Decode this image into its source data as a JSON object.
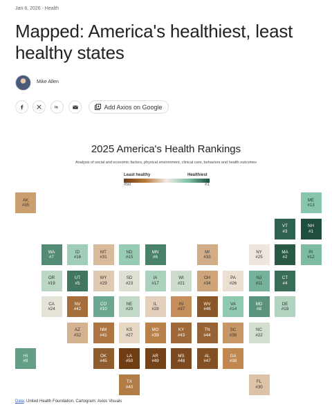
{
  "article": {
    "meta": "Jan 8, 2026 - Health",
    "headline": "Mapped: America's healthiest, least healthy states",
    "author": "Mike Allen",
    "share_google_label": "Add Axios on Google"
  },
  "share_icons": [
    "facebook-icon",
    "x-icon",
    "linkedin-icon",
    "email-icon"
  ],
  "chart_data": {
    "type": "heatmap",
    "title": "2025 America's Health Rankings",
    "subtitle": "Analysis of social and economic factors, physical environment, clinical care, behaviors and health outcomes",
    "legend": {
      "left_label": "Least healthy",
      "right_label": "Healthiest",
      "left_value": "#50",
      "right_value": "#1"
    },
    "colors": {
      "worst": "#6e3d14",
      "mid_low": "#c08850",
      "mid": "#eee6dc",
      "mid_high": "#86c6ac",
      "best": "#1f4f3c"
    },
    "states": [
      {
        "abbr": "AK",
        "rank": 35,
        "label": "#35",
        "row": 0,
        "col": 0
      },
      {
        "abbr": "ME",
        "rank": 13,
        "label": "#13",
        "row": 0,
        "col": 11
      },
      {
        "abbr": "VT",
        "rank": 3,
        "label": "#3",
        "row": 1,
        "col": 10
      },
      {
        "abbr": "NH",
        "rank": 1,
        "label": "#1",
        "row": 1,
        "col": 11
      },
      {
        "abbr": "WA",
        "rank": 7,
        "label": "#7",
        "row": 2,
        "col": 1
      },
      {
        "abbr": "ID",
        "rank": 16,
        "label": "#16",
        "row": 2,
        "col": 2
      },
      {
        "abbr": "MT",
        "rank": 31,
        "label": "#31",
        "row": 2,
        "col": 3
      },
      {
        "abbr": "ND",
        "rank": 15,
        "label": "#15",
        "row": 2,
        "col": 4
      },
      {
        "abbr": "MN",
        "rank": 6,
        "label": "#6",
        "row": 2,
        "col": 5
      },
      {
        "abbr": "MI",
        "rank": 33,
        "label": "#33",
        "row": 2,
        "col": 7
      },
      {
        "abbr": "NY",
        "rank": 25,
        "label": "#25",
        "row": 2,
        "col": 9
      },
      {
        "abbr": "MA",
        "rank": 2,
        "label": "#2",
        "row": 2,
        "col": 10
      },
      {
        "abbr": "RI",
        "rank": 12,
        "label": "#12",
        "row": 2,
        "col": 11
      },
      {
        "abbr": "OR",
        "rank": 19,
        "label": "#19",
        "row": 3,
        "col": 1
      },
      {
        "abbr": "UT",
        "rank": 5,
        "label": "#5",
        "row": 3,
        "col": 2
      },
      {
        "abbr": "WY",
        "rank": 29,
        "label": "#29",
        "row": 3,
        "col": 3
      },
      {
        "abbr": "SD",
        "rank": 23,
        "label": "#23",
        "row": 3,
        "col": 4
      },
      {
        "abbr": "IA",
        "rank": 17,
        "label": "#17",
        "row": 3,
        "col": 5
      },
      {
        "abbr": "WI",
        "rank": 21,
        "label": "#21",
        "row": 3,
        "col": 6
      },
      {
        "abbr": "OH",
        "rank": 34,
        "label": "#34",
        "row": 3,
        "col": 7
      },
      {
        "abbr": "PA",
        "rank": 26,
        "label": "#26",
        "row": 3,
        "col": 8
      },
      {
        "abbr": "NJ",
        "rank": 11,
        "label": "#11",
        "row": 3,
        "col": 9
      },
      {
        "abbr": "CT",
        "rank": 4,
        "label": "#4",
        "row": 3,
        "col": 10
      },
      {
        "abbr": "CA",
        "rank": 24,
        "label": "#24",
        "row": 4,
        "col": 1
      },
      {
        "abbr": "NV",
        "rank": 42,
        "label": "#42",
        "row": 4,
        "col": 2
      },
      {
        "abbr": "CO",
        "rank": 10,
        "label": "#10",
        "row": 4,
        "col": 3
      },
      {
        "abbr": "NE",
        "rank": 20,
        "label": "#20",
        "row": 4,
        "col": 4
      },
      {
        "abbr": "IL",
        "rank": 28,
        "label": "#28",
        "row": 4,
        "col": 5
      },
      {
        "abbr": "IN",
        "rank": 37,
        "label": "#37",
        "row": 4,
        "col": 6
      },
      {
        "abbr": "WV",
        "rank": 46,
        "label": "#46",
        "row": 4,
        "col": 7
      },
      {
        "abbr": "VA",
        "rank": 14,
        "label": "#14",
        "row": 4,
        "col": 8
      },
      {
        "abbr": "MD",
        "rank": 8,
        "label": "#8",
        "row": 4,
        "col": 9
      },
      {
        "abbr": "DE",
        "rank": 18,
        "label": "#18",
        "row": 4,
        "col": 10
      },
      {
        "abbr": "AZ",
        "rank": 32,
        "label": "#32",
        "row": 5,
        "col": 2
      },
      {
        "abbr": "NM",
        "rank": 41,
        "label": "#41",
        "row": 5,
        "col": 3
      },
      {
        "abbr": "KS",
        "rank": 27,
        "label": "#27",
        "row": 5,
        "col": 4
      },
      {
        "abbr": "MO",
        "rank": 39,
        "label": "#39",
        "row": 5,
        "col": 5
      },
      {
        "abbr": "KY",
        "rank": 43,
        "label": "#43",
        "row": 5,
        "col": 6
      },
      {
        "abbr": "TN",
        "rank": 44,
        "label": "#44",
        "row": 5,
        "col": 7
      },
      {
        "abbr": "SC",
        "rank": 36,
        "label": "#36",
        "row": 5,
        "col": 8
      },
      {
        "abbr": "NC",
        "rank": 22,
        "label": "#22",
        "row": 5,
        "col": 9
      },
      {
        "abbr": "HI",
        "rank": 9,
        "label": "#9",
        "row": 6,
        "col": 0
      },
      {
        "abbr": "OK",
        "rank": 45,
        "label": "#45",
        "row": 6,
        "col": 3
      },
      {
        "abbr": "LA",
        "rank": 50,
        "label": "#50",
        "row": 6,
        "col": 4
      },
      {
        "abbr": "AR",
        "rank": 49,
        "label": "#49",
        "row": 6,
        "col": 5
      },
      {
        "abbr": "MS",
        "rank": 48,
        "label": "#48",
        "row": 6,
        "col": 6
      },
      {
        "abbr": "AL",
        "rank": 47,
        "label": "#47",
        "row": 6,
        "col": 7
      },
      {
        "abbr": "GA",
        "rank": 38,
        "label": "#38",
        "row": 6,
        "col": 8
      },
      {
        "abbr": "TX",
        "rank": 40,
        "label": "#40",
        "row": 7,
        "col": 4
      },
      {
        "abbr": "FL",
        "rank": 30,
        "label": "#30",
        "row": 7,
        "col": 9
      }
    ]
  },
  "footer": {
    "data_link": "Data",
    "rest": ": United Health Foundation. Cartogram: Axios Visuals"
  }
}
